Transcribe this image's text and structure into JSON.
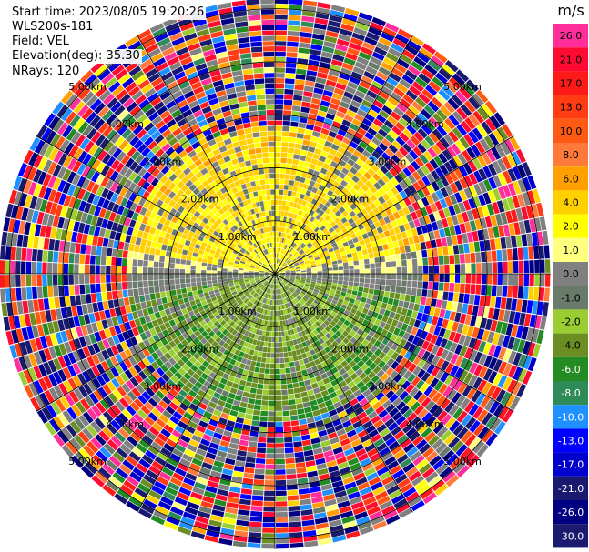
{
  "header": {
    "start_time": "Start time: 2023/08/05 19:20:26",
    "station": "WLS200s-181",
    "field": "Field: VEL",
    "elevation": "Elevation(deg): 35.30",
    "nrays": "NRays: 120"
  },
  "chart_data": {
    "type": "heatmap",
    "projection": "polar-ppi",
    "field": "VEL",
    "station": "WLS200s-181",
    "start_time": "2023/08/05 19:20:26",
    "elevation_deg": 35.3,
    "n_rays": 120,
    "range_rings_km": [
      1.0,
      2.0,
      3.0,
      4.0,
      5.0
    ],
    "max_range_km": 5.2,
    "range_ring_labels": [
      "1.00km",
      "2.00km",
      "3.00km",
      "4.00km",
      "5.00km"
    ],
    "colorbar": {
      "unit": "m/s",
      "levels": [
        "26.0",
        "21.0",
        "17.0",
        "13.0",
        "10.0",
        "8.0",
        "6.0",
        "4.0",
        "2.0",
        "1.0",
        "0.0",
        "-1.0",
        "-2.0",
        "-4.0",
        "-6.0",
        "-8.0",
        "-10.0",
        "-13.0",
        "-17.0",
        "-21.0",
        "-26.0",
        "-30.0"
      ],
      "colors": [
        "#ff2e9a",
        "#ff0a32",
        "#ff1a1a",
        "#ff3c14",
        "#ff5a14",
        "#ff7a3a",
        "#ffa000",
        "#ffd000",
        "#ffff00",
        "#ffff80",
        "#808080",
        "#6a7a6a",
        "#9acd32",
        "#6b8e23",
        "#228b22",
        "#2e8b57",
        "#1e90ff",
        "#0000ff",
        "#0000cd",
        "#191970",
        "#000080",
        "#1a1a6e"
      ]
    },
    "description_regions": [
      {
        "sector": "north",
        "range_km": [
          0,
          1.6
        ],
        "dominant": "positive 2 to 4 m/s (yellow/orange)"
      },
      {
        "sector": "south",
        "range_km": [
          0,
          2.2
        ],
        "dominant": "negative -2 to -6 m/s (green)"
      },
      {
        "sector": "all",
        "range_km": [
          2.8,
          5.2
        ],
        "dominant": "noise (mixed colors)"
      }
    ]
  }
}
